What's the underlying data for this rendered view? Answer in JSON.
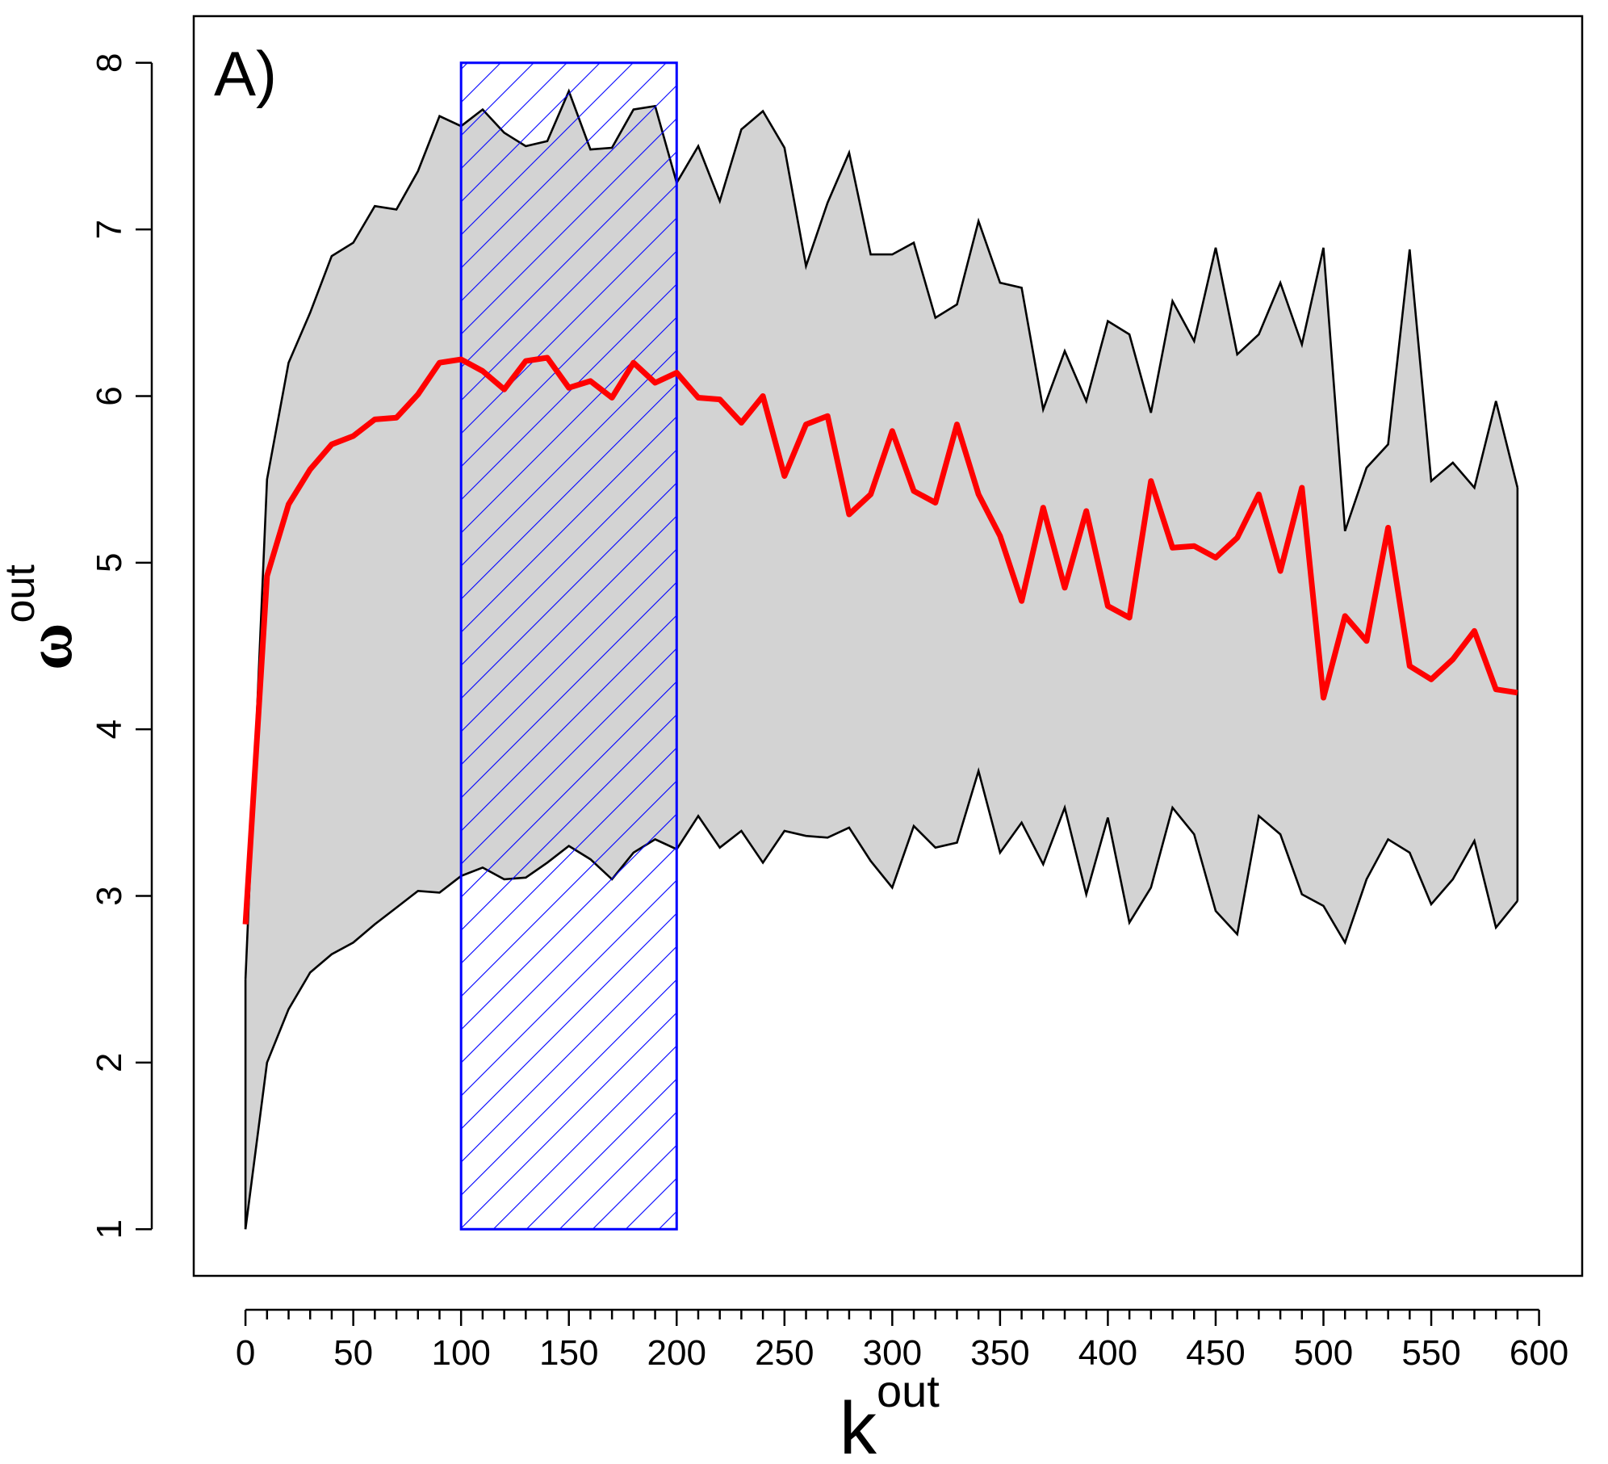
{
  "chart_data": {
    "type": "line",
    "panel_label": "A)",
    "xlabel": {
      "base": "k",
      "superscript": "out"
    },
    "ylabel": {
      "base": "ω",
      "superscript": "out"
    },
    "xlim": [
      -24,
      620
    ],
    "ylim": [
      0.72,
      8.28
    ],
    "x_ticks": [
      0,
      50,
      100,
      150,
      200,
      250,
      300,
      350,
      400,
      450,
      500,
      550,
      600
    ],
    "x_minor_step": 10,
    "y_ticks": [
      1,
      2,
      3,
      4,
      5,
      6,
      7,
      8
    ],
    "grid": false,
    "highlight_region": {
      "x": [
        100,
        200
      ],
      "y": [
        1,
        8
      ],
      "pattern": "diagonal-hatch"
    },
    "x": [
      0,
      10,
      20,
      30,
      40,
      50,
      60,
      70,
      80,
      90,
      100,
      110,
      120,
      130,
      140,
      150,
      160,
      170,
      180,
      190,
      200,
      210,
      220,
      230,
      240,
      250,
      260,
      270,
      280,
      290,
      300,
      310,
      320,
      330,
      340,
      350,
      360,
      370,
      380,
      390,
      400,
      410,
      420,
      430,
      440,
      450,
      460,
      470,
      480,
      490,
      500,
      510,
      520,
      530,
      540,
      550,
      560,
      570,
      580,
      590
    ],
    "series": [
      {
        "role": "mean",
        "values": [
          2.83,
          4.92,
          5.35,
          5.56,
          5.71,
          5.76,
          5.86,
          5.87,
          6.01,
          6.2,
          6.22,
          6.15,
          6.04,
          6.21,
          6.23,
          6.05,
          6.09,
          5.99,
          6.2,
          6.08,
          6.14,
          5.99,
          5.98,
          5.84,
          6.0,
          5.52,
          5.83,
          5.88,
          5.29,
          5.41,
          5.79,
          5.43,
          5.36,
          5.83,
          5.41,
          5.16,
          4.77,
          5.33,
          4.85,
          5.31,
          4.74,
          4.67,
          5.49,
          5.09,
          5.1,
          5.03,
          5.15,
          5.41,
          4.95,
          5.45,
          4.19,
          4.68,
          4.53,
          5.21,
          4.38,
          4.3,
          4.42,
          4.59,
          4.24,
          4.22
        ]
      },
      {
        "role": "upper_bound",
        "values": [
          2.5,
          5.5,
          6.2,
          6.5,
          6.84,
          6.92,
          7.14,
          7.12,
          7.35,
          7.68,
          7.62,
          7.72,
          7.58,
          7.5,
          7.53,
          7.83,
          7.48,
          7.49,
          7.72,
          7.74,
          7.28,
          7.5,
          7.17,
          7.6,
          7.71,
          7.49,
          6.78,
          7.16,
          7.46,
          6.85,
          6.85,
          6.92,
          6.47,
          6.55,
          7.05,
          6.68,
          6.65,
          5.92,
          6.27,
          5.97,
          6.45,
          6.37,
          5.9,
          6.57,
          6.33,
          6.89,
          6.25,
          6.37,
          6.68,
          6.31,
          6.89,
          5.19,
          5.57,
          5.71,
          6.88,
          5.49,
          5.6,
          5.45,
          5.97,
          5.45
        ]
      },
      {
        "role": "lower_bound",
        "values": [
          1.0,
          2.0,
          2.32,
          2.54,
          2.65,
          2.72,
          2.83,
          2.93,
          3.03,
          3.02,
          3.12,
          3.17,
          3.1,
          3.11,
          3.2,
          3.3,
          3.22,
          3.1,
          3.26,
          3.34,
          3.28,
          3.48,
          3.29,
          3.39,
          3.2,
          3.39,
          3.36,
          3.35,
          3.41,
          3.21,
          3.05,
          3.42,
          3.29,
          3.32,
          3.75,
          3.26,
          3.44,
          3.19,
          3.53,
          3.01,
          3.47,
          2.84,
          3.05,
          3.53,
          3.37,
          2.91,
          2.77,
          3.48,
          3.37,
          3.01,
          2.94,
          2.72,
          3.1,
          3.34,
          3.26,
          2.95,
          3.1,
          3.33,
          2.81,
          2.97
        ]
      }
    ],
    "colors": {
      "mean_line": "#ff0000",
      "band_fill": "#d3d3d3",
      "band_edge": "#000000",
      "highlight": "#0000ff",
      "axes": "#000000",
      "background": "#ffffff"
    }
  }
}
